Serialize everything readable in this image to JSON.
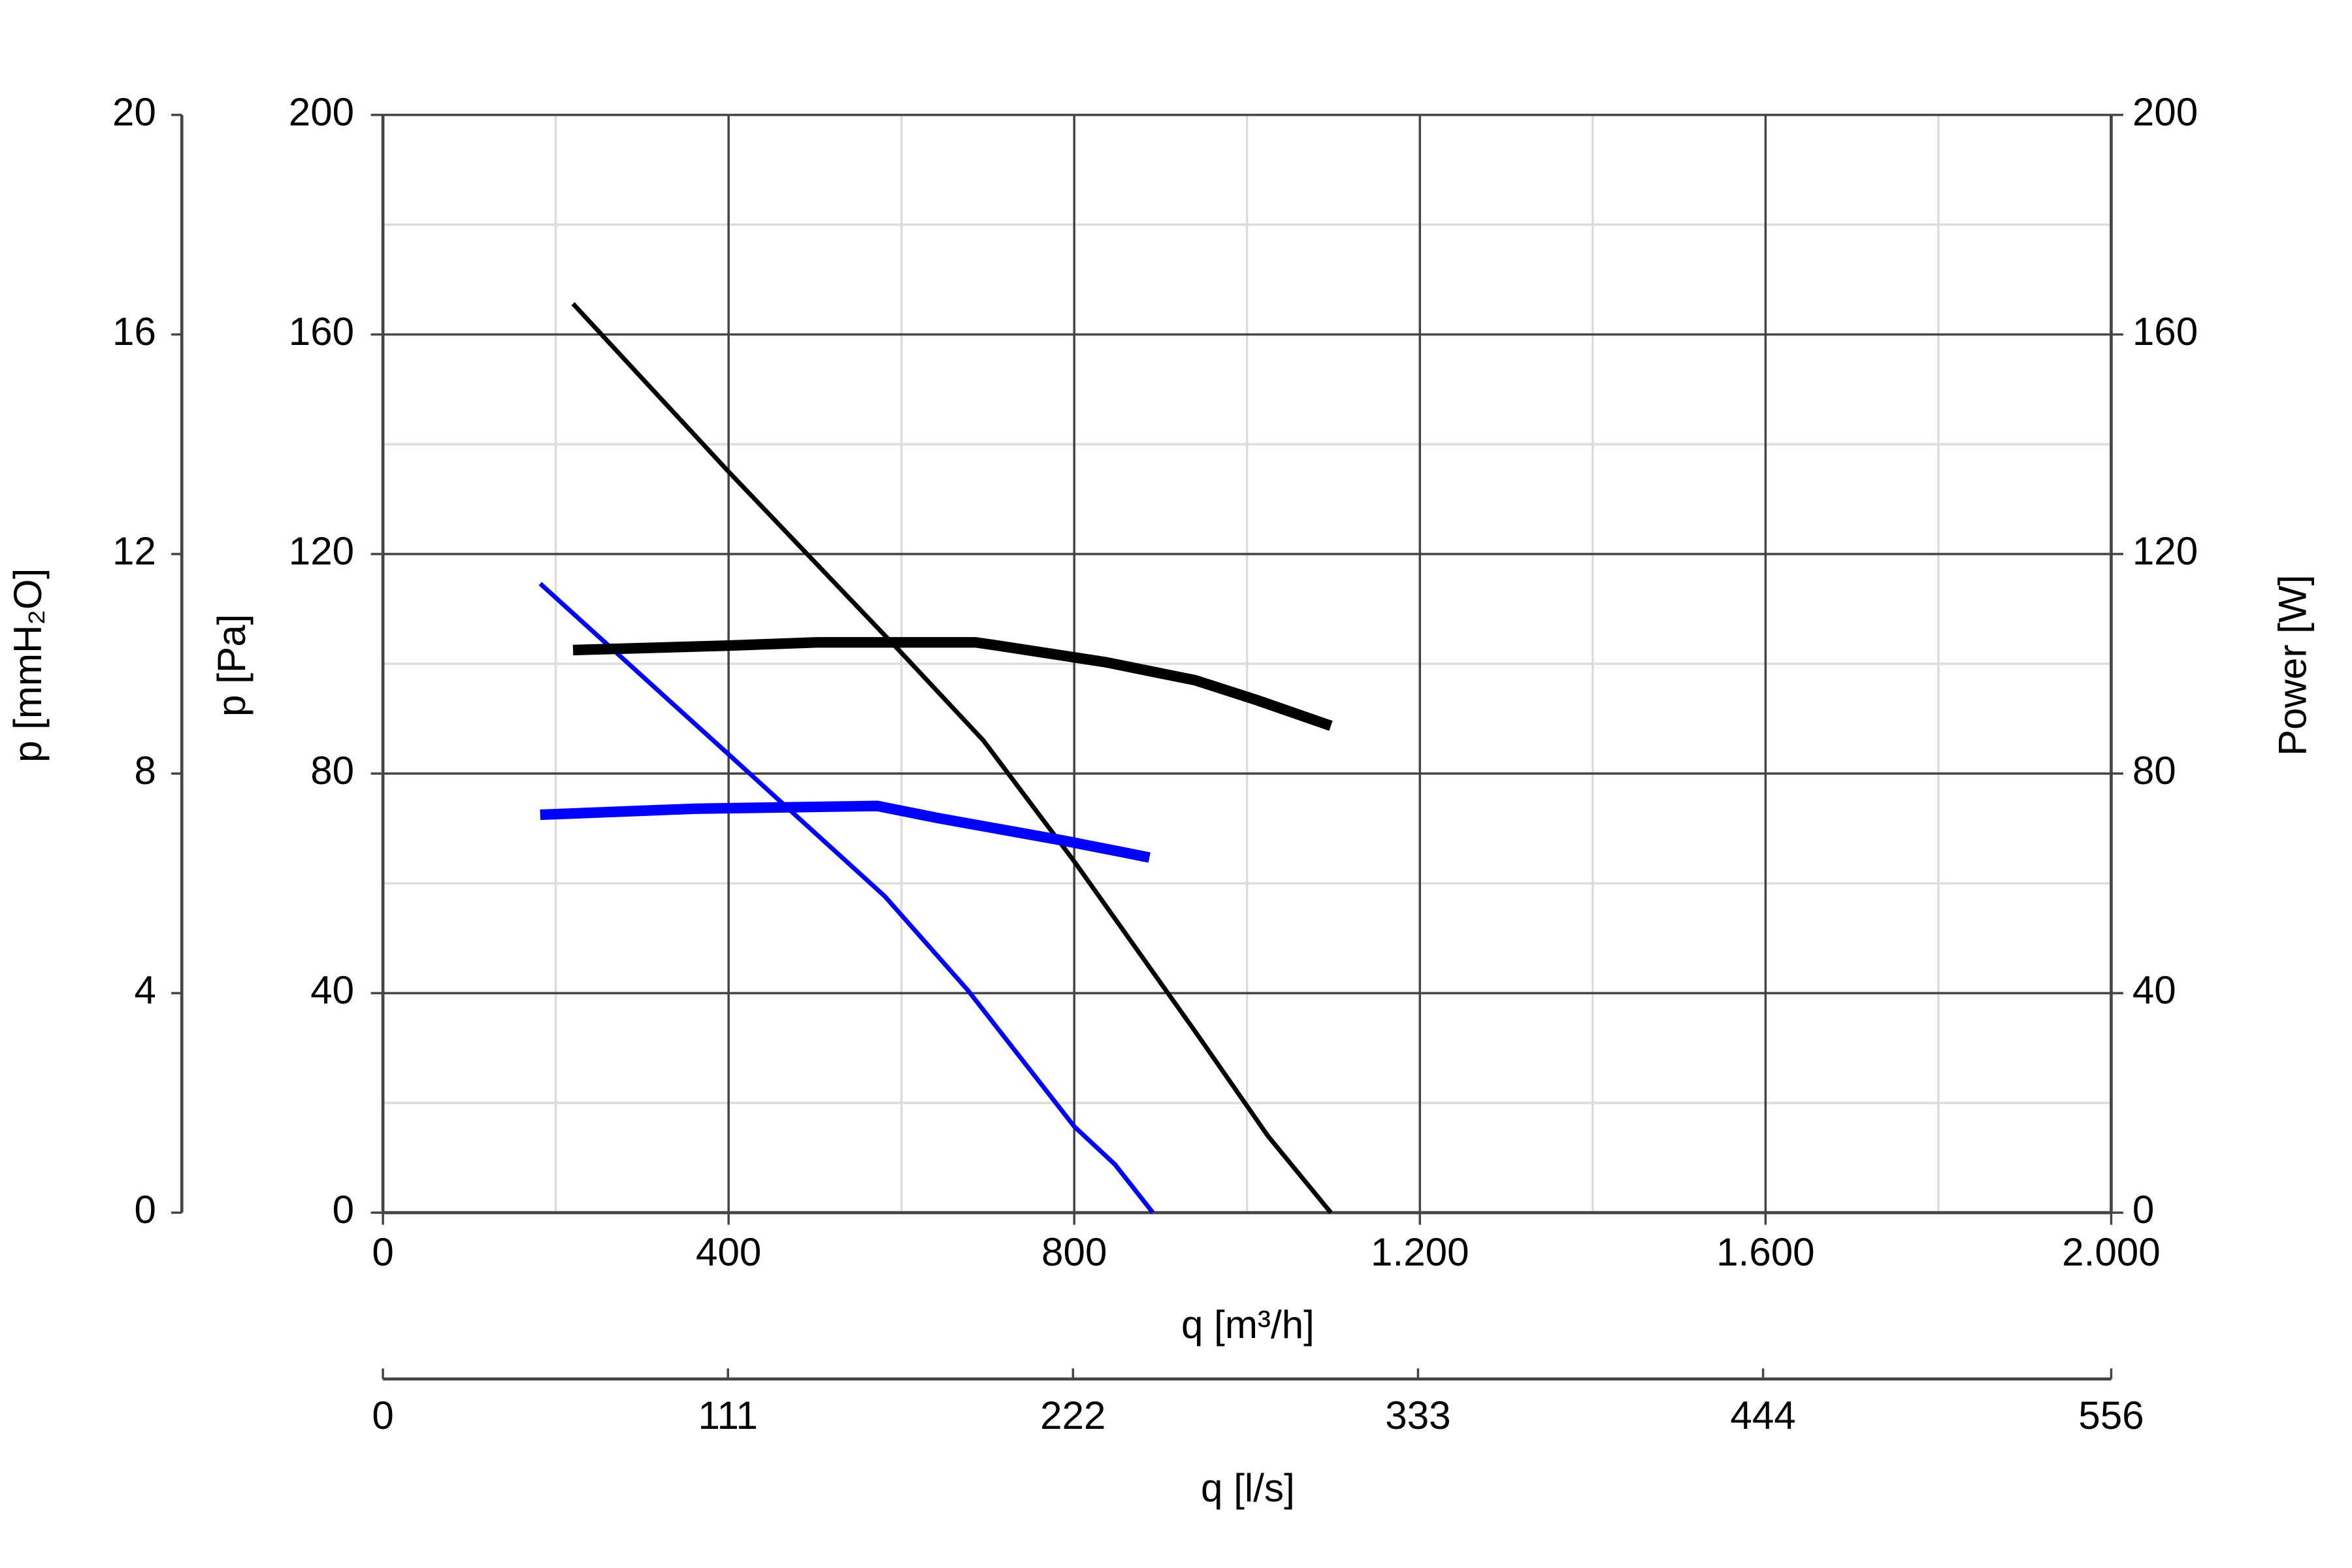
{
  "chart_data": {
    "type": "line",
    "xlabel": "q [m³/h]",
    "xlim": [
      0,
      2000
    ],
    "xticks": [
      0,
      400,
      800,
      {
        "value": 1200,
        "label": "1.200"
      },
      {
        "value": 1600,
        "label": "1.600"
      },
      {
        "value": 2000,
        "label": "2.000"
      }
    ],
    "x2label": "q [l/s]",
    "x2lim": [
      0,
      556
    ],
    "x2ticks": [
      0,
      111,
      222,
      333,
      444,
      556
    ],
    "ylabel": "p [Pa]",
    "ylim": [
      0,
      200
    ],
    "yticks": [
      0,
      40,
      80,
      120,
      160,
      200
    ],
    "y2label": "Power [W]",
    "y2lim": [
      0,
      200
    ],
    "y2ticks": [
      0,
      40,
      80,
      120,
      160,
      200
    ],
    "y3label": "p [mmH₂O]",
    "y3lim": [
      0,
      20
    ],
    "y3ticks": [
      0,
      4,
      8,
      12,
      16,
      20
    ],
    "grid": true,
    "series": [
      {
        "color": "#000000",
        "x": [
          220,
          400,
          600,
          695,
          800,
          940,
          1024,
          1097
        ],
        "values": [
          165.6,
          135,
          102,
          86,
          64,
          33,
          14,
          0
        ]
      },
      {
        "color": "#0000ff",
        "x": [
          182,
          400,
          581,
          677,
          800,
          847,
          891
        ],
        "values": [
          114.6,
          83.5,
          57.6,
          40.5,
          15.7,
          8.8,
          0
        ]
      },
      {
        "color": "#000000",
        "axis": "y2",
        "x": [
          220,
          397,
          502,
          686,
          712,
          836,
          940,
          1011,
          1097
        ],
        "values": [
          102.5,
          103.3,
          103.9,
          103.9,
          103.3,
          100.3,
          97,
          93.4,
          88.7
        ]
      },
      {
        "color": "#0000ff",
        "axis": "y2",
        "x": [
          182,
          362,
          572,
          642,
          787,
          852,
          887
        ],
        "values": [
          72.5,
          73.6,
          74.1,
          71.9,
          67.8,
          65.8,
          64.7
        ]
      }
    ]
  }
}
